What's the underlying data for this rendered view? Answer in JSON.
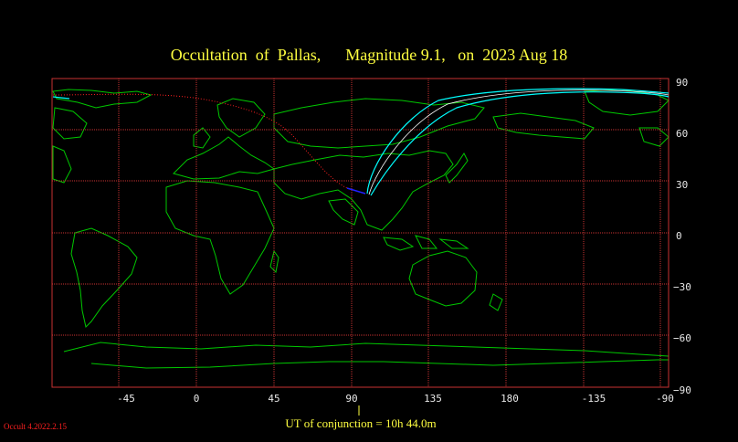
{
  "title": "Occultation  of  Pallas,      Magnitude 9.1,   on  2023 Aug 18",
  "x_ticks": [
    "-45",
    "0",
    "45",
    "90",
    "135",
    "180",
    "-135",
    "-90"
  ],
  "y_ticks": [
    "90",
    "60",
    "30",
    "0",
    "−30",
    "−60",
    "−90"
  ],
  "conjunction_label": "UT of conjunction = 10h 44.0m",
  "credit": "Occult 4.2022.2.15",
  "colors": {
    "background": "#000000",
    "grid": "#c83232",
    "coast": "#00c800",
    "track": "#00ffff",
    "center": "#ffffff",
    "dotted": "#ff2020",
    "title": "#ffff40"
  }
}
